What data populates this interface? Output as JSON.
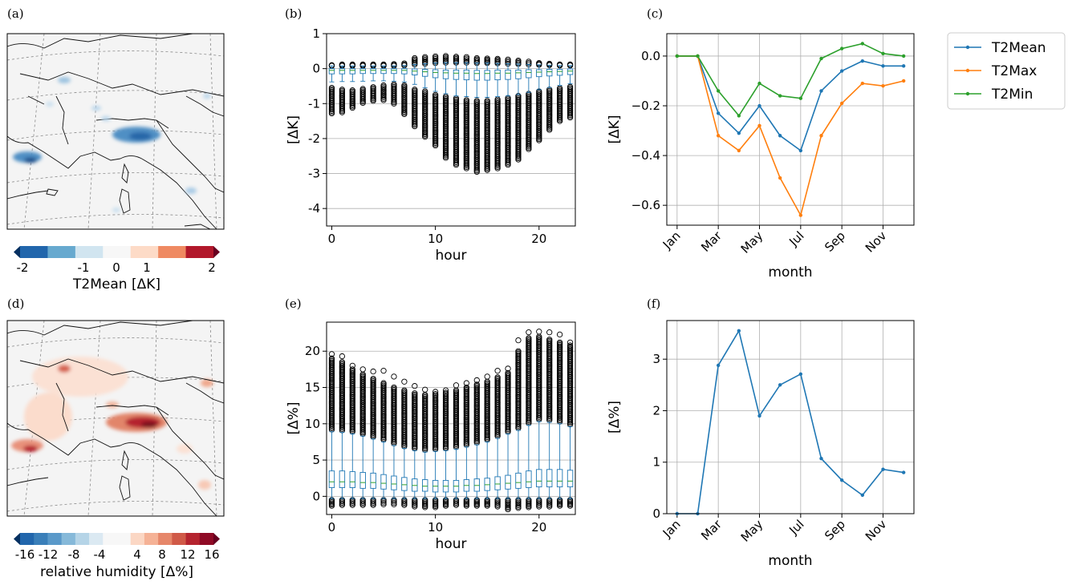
{
  "panel_labels": [
    "(a)",
    "(b)",
    "(c)",
    "(d)",
    "(e)",
    "(f)"
  ],
  "colors": {
    "t2mean": "#1f77b4",
    "t2max": "#ff7f0e",
    "t2min": "#2ca02c",
    "box_median": "#2ca02c",
    "grid": "#b0b0b0",
    "map_bg": "#f4f4f4"
  },
  "maps": [
    {
      "id": "a",
      "colorbar": {
        "label": "T2Mean [ΔK]",
        "ticks": [
          "-2",
          "-1",
          "0",
          "1",
          "2"
        ],
        "colors": [
          "#2166ac",
          "#67a9cf",
          "#d1e5f0",
          "#f7f7f7",
          "#fddbc7",
          "#ef8a62",
          "#b2182b"
        ],
        "extend_low": "#053061",
        "extend_high": "#67001f"
      }
    },
    {
      "id": "d",
      "colorbar": {
        "label": "relative humidity [Δ%]",
        "ticks": [
          "-16",
          "-12",
          "-8",
          "-4",
          "4",
          "8",
          "12",
          "16"
        ],
        "colors": [
          "#2166ac",
          "#3a7fb9",
          "#5a99c9",
          "#86b9d9",
          "#b5d4e7",
          "#dbe9f2",
          "#f7f7f7",
          "#f7f7f7",
          "#fbd7c4",
          "#f5b296",
          "#e6876a",
          "#d05a48",
          "#b5242f",
          "#8f0a25"
        ],
        "extend_low": "#053061",
        "extend_high": "#67001f"
      }
    }
  ],
  "chart_data": [
    {
      "id": "b",
      "type": "box",
      "xlabel": "hour",
      "ylabel": "[ΔK]",
      "xlim": [
        -0.5,
        23.5
      ],
      "ylim": [
        -4.5,
        1.0
      ],
      "xticks": [
        0,
        10,
        20
      ],
      "yticks": [
        -4,
        -3,
        -2,
        -1,
        0,
        1
      ],
      "hours": [
        0,
        1,
        2,
        3,
        4,
        5,
        6,
        7,
        8,
        9,
        10,
        11,
        12,
        13,
        14,
        15,
        16,
        17,
        18,
        19,
        20,
        21,
        22,
        23
      ],
      "q1": [
        -0.15,
        -0.15,
        -0.15,
        -0.14,
        -0.14,
        -0.14,
        -0.14,
        -0.15,
        -0.18,
        -0.22,
        -0.26,
        -0.29,
        -0.31,
        -0.32,
        -0.33,
        -0.33,
        -0.32,
        -0.31,
        -0.29,
        -0.26,
        -0.23,
        -0.21,
        -0.19,
        -0.17
      ],
      "median": [
        -0.05,
        -0.05,
        -0.05,
        -0.05,
        -0.05,
        -0.05,
        -0.05,
        -0.05,
        -0.07,
        -0.09,
        -0.11,
        -0.12,
        -0.13,
        -0.13,
        -0.14,
        -0.14,
        -0.13,
        -0.13,
        -0.12,
        -0.11,
        -0.1,
        -0.09,
        -0.08,
        -0.07
      ],
      "q3": [
        0.0,
        0.0,
        0.0,
        0.0,
        0.0,
        0.0,
        0.0,
        0.0,
        -0.01,
        -0.02,
        -0.03,
        -0.04,
        -0.04,
        -0.04,
        -0.05,
        -0.05,
        -0.04,
        -0.04,
        -0.04,
        -0.03,
        -0.03,
        -0.02,
        -0.02,
        -0.01
      ],
      "whisker_low": [
        -0.38,
        -0.37,
        -0.37,
        -0.36,
        -0.35,
        -0.35,
        -0.36,
        -0.38,
        -0.45,
        -0.55,
        -0.65,
        -0.72,
        -0.78,
        -0.8,
        -0.82,
        -0.82,
        -0.8,
        -0.78,
        -0.74,
        -0.68,
        -0.6,
        -0.54,
        -0.48,
        -0.43
      ],
      "whisker_high": [
        0.08,
        0.08,
        0.08,
        0.08,
        0.08,
        0.08,
        0.08,
        0.09,
        0.12,
        0.14,
        0.16,
        0.17,
        0.17,
        0.17,
        0.16,
        0.16,
        0.15,
        0.14,
        0.13,
        0.12,
        0.11,
        0.1,
        0.09,
        0.09
      ],
      "outlier_high": [
        0.1,
        0.12,
        0.12,
        0.12,
        0.12,
        0.12,
        0.13,
        0.15,
        0.3,
        0.33,
        0.35,
        0.36,
        0.34,
        0.33,
        0.3,
        0.29,
        0.28,
        0.26,
        0.23,
        0.2,
        0.16,
        0.14,
        0.12,
        0.12
      ],
      "outlier_low_band_top": [
        -0.55,
        -0.6,
        -0.62,
        -0.58,
        -0.53,
        -0.48,
        -0.45,
        -0.48,
        -0.6,
        -0.65,
        -0.75,
        -0.8,
        -0.85,
        -0.9,
        -0.92,
        -0.92,
        -0.88,
        -0.84,
        -0.78,
        -0.72,
        -0.65,
        -0.6,
        -0.56,
        -0.52
      ],
      "outlier_low_min": [
        -1.28,
        -1.25,
        -1.12,
        -0.98,
        -0.92,
        -0.9,
        -1.0,
        -1.3,
        -1.65,
        -1.95,
        -2.2,
        -2.55,
        -2.75,
        -2.85,
        -2.95,
        -2.9,
        -2.85,
        -2.75,
        -2.6,
        -2.3,
        -2.05,
        -1.75,
        -1.5,
        -1.4
      ]
    },
    {
      "id": "c",
      "type": "line",
      "xlabel": "month",
      "ylabel": "[ΔK]",
      "ylim": [
        -0.68,
        0.09
      ],
      "yticks": [
        0.0,
        -0.2,
        -0.4,
        -0.6
      ],
      "ytick_labels": [
        "0.0",
        "−0.2",
        "−0.4",
        "−0.6"
      ],
      "x": [
        "Jan",
        "Feb",
        "Mar",
        "Apr",
        "May",
        "Jun",
        "Jul",
        "Aug",
        "Sep",
        "Oct",
        "Nov",
        "Dec"
      ],
      "xtick_labels": [
        "Jan",
        "Mar",
        "May",
        "Jul",
        "Sep",
        "Nov"
      ],
      "legend_position": "outside-right",
      "series": [
        {
          "name": "T2Mean",
          "values": [
            0.0,
            0.0,
            -0.23,
            -0.31,
            -0.2,
            -0.32,
            -0.38,
            -0.14,
            -0.06,
            -0.02,
            -0.04,
            -0.04
          ]
        },
        {
          "name": "T2Max",
          "values": [
            0.0,
            0.0,
            -0.32,
            -0.38,
            -0.28,
            -0.49,
            -0.64,
            -0.32,
            -0.19,
            -0.11,
            -0.12,
            -0.1
          ]
        },
        {
          "name": "T2Min",
          "values": [
            0.0,
            0.0,
            -0.14,
            -0.24,
            -0.11,
            -0.16,
            -0.17,
            -0.01,
            0.03,
            0.05,
            0.01,
            0.0
          ]
        }
      ]
    },
    {
      "id": "e",
      "type": "box",
      "xlabel": "hour",
      "ylabel": "[Δ%]",
      "xlim": [
        -0.5,
        23.5
      ],
      "ylim": [
        -2.5,
        24.0
      ],
      "xticks": [
        0,
        10,
        20
      ],
      "yticks": [
        0,
        5,
        10,
        15,
        20
      ],
      "hours": [
        0,
        1,
        2,
        3,
        4,
        5,
        6,
        7,
        8,
        9,
        10,
        11,
        12,
        13,
        14,
        15,
        16,
        17,
        18,
        19,
        20,
        21,
        22,
        23
      ],
      "q1": [
        1.2,
        1.2,
        1.2,
        1.1,
        1.1,
        1.0,
        0.9,
        0.8,
        0.7,
        0.7,
        0.6,
        0.6,
        0.6,
        0.7,
        0.7,
        0.8,
        0.9,
        1.0,
        1.1,
        1.2,
        1.3,
        1.3,
        1.3,
        1.3
      ],
      "median": [
        2.0,
        2.0,
        2.0,
        1.9,
        1.9,
        1.8,
        1.7,
        1.6,
        1.5,
        1.4,
        1.4,
        1.4,
        1.4,
        1.5,
        1.5,
        1.6,
        1.7,
        1.8,
        1.9,
        2.0,
        2.1,
        2.1,
        2.1,
        2.1
      ],
      "q3": [
        3.5,
        3.5,
        3.4,
        3.3,
        3.2,
        3.0,
        2.8,
        2.6,
        2.4,
        2.3,
        2.2,
        2.2,
        2.2,
        2.3,
        2.4,
        2.5,
        2.7,
        2.9,
        3.2,
        3.5,
        3.7,
        3.7,
        3.7,
        3.6
      ],
      "whisker_low": [
        -0.3,
        -0.3,
        -0.3,
        -0.3,
        -0.3,
        -0.3,
        -0.3,
        -0.3,
        -0.3,
        -0.3,
        -0.3,
        -0.3,
        -0.3,
        -0.3,
        -0.3,
        -0.3,
        -0.3,
        -0.3,
        -0.3,
        -0.3,
        -0.3,
        -0.3,
        -0.3,
        -0.3
      ],
      "whisker_high": [
        8.9,
        8.8,
        8.6,
        8.3,
        7.9,
        7.5,
        7.0,
        6.6,
        6.3,
        6.1,
        6.2,
        6.3,
        6.5,
        6.8,
        7.1,
        7.5,
        8.0,
        8.6,
        9.1,
        9.8,
        10.3,
        10.2,
        10.0,
        9.6
      ],
      "outlier_low_max": [
        -0.5,
        -0.5,
        -0.5,
        -0.5,
        -0.5,
        -0.5,
        -0.5,
        -0.5,
        -0.5,
        -0.5,
        -0.5,
        -0.5,
        -0.5,
        -0.5,
        -0.5,
        -0.5,
        -0.5,
        -0.5,
        -0.5,
        -0.5,
        -0.5,
        -0.5,
        -0.5,
        -0.5
      ],
      "outlier_low_min": [
        -1.3,
        -1.2,
        -1.2,
        -1.2,
        -1.2,
        -1.1,
        -1.1,
        -1.2,
        -1.4,
        -1.5,
        -1.5,
        -1.3,
        -1.2,
        -1.3,
        -1.3,
        -1.3,
        -1.4,
        -1.8,
        -1.6,
        -1.5,
        -1.4,
        -1.4,
        -1.3,
        -1.3
      ],
      "outlier_high_band_top": [
        19.0,
        18.5,
        17.5,
        16.8,
        16.2,
        15.6,
        15.0,
        14.6,
        14.2,
        14.0,
        14.1,
        14.3,
        14.6,
        15.0,
        15.4,
        15.8,
        16.4,
        17.0,
        20.0,
        21.8,
        22.0,
        21.6,
        21.2,
        20.8
      ],
      "outlier_high_max": [
        19.6,
        19.3,
        18.0,
        17.5,
        17.2,
        17.3,
        16.5,
        15.8,
        15.2,
        14.7,
        14.4,
        14.6,
        15.3,
        15.6,
        16.0,
        16.5,
        17.3,
        17.6,
        21.5,
        22.6,
        22.7,
        22.6,
        22.3,
        21.2
      ]
    },
    {
      "id": "f",
      "type": "line",
      "xlabel": "month",
      "ylabel": "[Δ%]",
      "ylim": [
        0.0,
        3.75
      ],
      "yticks": [
        0,
        1,
        2,
        3
      ],
      "x": [
        "Jan",
        "Feb",
        "Mar",
        "Apr",
        "May",
        "Jun",
        "Jul",
        "Aug",
        "Sep",
        "Oct",
        "Nov",
        "Dec"
      ],
      "xtick_labels": [
        "Jan",
        "Mar",
        "May",
        "Jul",
        "Sep",
        "Nov"
      ],
      "series": [
        {
          "values": [
            0.0,
            0.0,
            2.88,
            3.55,
            1.9,
            2.5,
            2.71,
            1.07,
            0.65,
            0.36,
            0.86,
            0.8
          ]
        }
      ]
    }
  ]
}
